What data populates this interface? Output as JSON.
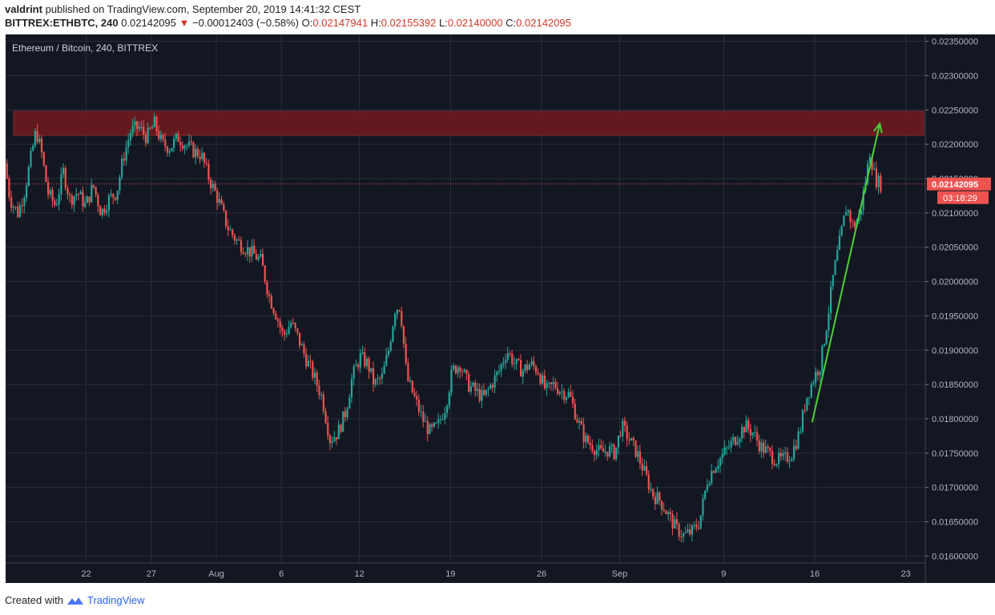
{
  "header": {
    "author": "valdrint",
    "published_text": "published on TradingView.com, September 20, 2019 14:41:32 CEST",
    "symbol": "BITTREX:ETHBTC, 240",
    "last": "0.02142095",
    "change_arrow": "▼",
    "change": "−0.00012403 (−0.58%)",
    "open_label": "O:",
    "open": "0.02147941",
    "high_label": "H:",
    "high": "0.02155392",
    "low_label": "L:",
    "low": "0.02140000",
    "close_label": "C:",
    "close": "0.02142095"
  },
  "footer": {
    "created_with": "Created with",
    "brand": "TradingView",
    "brand_icon": "tradingview-logo-icon"
  },
  "colors": {
    "bg": "#131722",
    "grid": "#2a2e39",
    "up": "#26a69a",
    "down": "#ef5350",
    "zone": "#6b1a1f",
    "arrow": "#4cd137",
    "price_tag": "#ef5350"
  },
  "chart_data": {
    "type": "candlestick",
    "title": "Ethereum / Bitcoin, 240, BITTREX",
    "interval": "240",
    "ylim": [
      0.0159,
      0.0236
    ],
    "y_ticks": [
      "0.02350000",
      "0.02300000",
      "0.02250000",
      "0.02200000",
      "0.02150000",
      "0.02100000",
      "0.02050000",
      "0.02000000",
      "0.01950000",
      "0.01900000",
      "0.01850000",
      "0.01800000",
      "0.01750000",
      "0.01700000",
      "0.01650000",
      "0.01600000"
    ],
    "x_ticks": [
      {
        "label": "22",
        "day": 22
      },
      {
        "label": "27",
        "day": 27
      },
      {
        "label": "Aug",
        "day": 32
      },
      {
        "label": "6",
        "day": 37
      },
      {
        "label": "12",
        "day": 43
      },
      {
        "label": "19",
        "day": 50
      },
      {
        "label": "26",
        "day": 57
      },
      {
        "label": "Sep",
        "day": 63
      },
      {
        "label": "9",
        "day": 71
      },
      {
        "label": "16",
        "day": 78
      },
      {
        "label": "23",
        "day": 85
      }
    ],
    "x_day_range": [
      15.8,
      86.5
    ],
    "price_path": [
      [
        15.8,
        0.02185
      ],
      [
        16.3,
        0.0212
      ],
      [
        16.9,
        0.021
      ],
      [
        17.4,
        0.0213
      ],
      [
        17.9,
        0.0218
      ],
      [
        18.3,
        0.0222
      ],
      [
        18.7,
        0.0219
      ],
      [
        19.2,
        0.0213
      ],
      [
        19.8,
        0.0211
      ],
      [
        20.4,
        0.0216
      ],
      [
        20.9,
        0.0212
      ],
      [
        21.5,
        0.0213
      ],
      [
        22.1,
        0.0211
      ],
      [
        22.7,
        0.0214
      ],
      [
        23.3,
        0.021
      ],
      [
        23.9,
        0.0212
      ],
      [
        24.5,
        0.0213
      ],
      [
        25.0,
        0.0218
      ],
      [
        25.6,
        0.0222
      ],
      [
        26.2,
        0.02225
      ],
      [
        26.8,
        0.0221
      ],
      [
        27.4,
        0.0223
      ],
      [
        28.0,
        0.022
      ],
      [
        28.6,
        0.02195
      ],
      [
        29.2,
        0.0221
      ],
      [
        29.8,
        0.022
      ],
      [
        30.4,
        0.0219
      ],
      [
        31.0,
        0.02185
      ],
      [
        31.6,
        0.0215
      ],
      [
        32.3,
        0.0212
      ],
      [
        33.0,
        0.0208
      ],
      [
        33.7,
        0.0206
      ],
      [
        34.3,
        0.0205
      ],
      [
        35.0,
        0.0204
      ],
      [
        35.6,
        0.0203
      ],
      [
        36.2,
        0.0198
      ],
      [
        36.8,
        0.0195
      ],
      [
        37.3,
        0.0192
      ],
      [
        37.9,
        0.0194
      ],
      [
        38.4,
        0.0192
      ],
      [
        39.0,
        0.0189
      ],
      [
        39.7,
        0.0186
      ],
      [
        40.3,
        0.0183
      ],
      [
        40.9,
        0.0177
      ],
      [
        41.5,
        0.0178
      ],
      [
        42.1,
        0.0181
      ],
      [
        42.6,
        0.0186
      ],
      [
        43.2,
        0.0189
      ],
      [
        43.8,
        0.0188
      ],
      [
        44.3,
        0.0185
      ],
      [
        44.9,
        0.0186
      ],
      [
        45.4,
        0.019
      ],
      [
        45.9,
        0.0196
      ],
      [
        46.3,
        0.01965
      ],
      [
        46.8,
        0.0186
      ],
      [
        47.4,
        0.0183
      ],
      [
        48.0,
        0.018
      ],
      [
        48.6,
        0.0178
      ],
      [
        49.2,
        0.0179
      ],
      [
        49.8,
        0.0182
      ],
      [
        50.3,
        0.0187
      ],
      [
        50.9,
        0.0188
      ],
      [
        51.5,
        0.0185
      ],
      [
        52.1,
        0.0184
      ],
      [
        52.7,
        0.0183
      ],
      [
        53.3,
        0.0185
      ],
      [
        53.9,
        0.0187
      ],
      [
        54.5,
        0.019
      ],
      [
        55.1,
        0.0188
      ],
      [
        55.7,
        0.0187
      ],
      [
        56.3,
        0.0188
      ],
      [
        56.9,
        0.0187
      ],
      [
        57.5,
        0.0184
      ],
      [
        58.1,
        0.0185
      ],
      [
        58.7,
        0.0184
      ],
      [
        59.3,
        0.01835
      ],
      [
        59.9,
        0.018
      ],
      [
        60.5,
        0.0177
      ],
      [
        61.1,
        0.0176
      ],
      [
        61.7,
        0.0175
      ],
      [
        62.3,
        0.01755
      ],
      [
        62.8,
        0.0175
      ],
      [
        63.3,
        0.0179
      ],
      [
        63.9,
        0.0177
      ],
      [
        64.5,
        0.0175
      ],
      [
        65.1,
        0.0172
      ],
      [
        65.7,
        0.0169
      ],
      [
        66.3,
        0.0168
      ],
      [
        66.9,
        0.0166
      ],
      [
        67.5,
        0.0164
      ],
      [
        68.1,
        0.0163
      ],
      [
        68.7,
        0.01635
      ],
      [
        69.3,
        0.0165
      ],
      [
        69.9,
        0.0171
      ],
      [
        70.4,
        0.0173
      ],
      [
        71.0,
        0.01745
      ],
      [
        71.6,
        0.0176
      ],
      [
        72.2,
        0.01775
      ],
      [
        72.8,
        0.0179
      ],
      [
        73.4,
        0.0178
      ],
      [
        74.0,
        0.0176
      ],
      [
        74.6,
        0.0175
      ],
      [
        75.2,
        0.0174
      ],
      [
        75.8,
        0.0174
      ],
      [
        76.4,
        0.0175
      ],
      [
        77.0,
        0.0178
      ],
      [
        77.5,
        0.0183
      ],
      [
        78.1,
        0.0186
      ],
      [
        78.6,
        0.0188
      ],
      [
        79.1,
        0.0194
      ],
      [
        79.6,
        0.0201
      ],
      [
        80.1,
        0.0206
      ],
      [
        80.6,
        0.0211
      ],
      [
        81.1,
        0.0208
      ],
      [
        81.6,
        0.02095
      ],
      [
        82.1,
        0.0215
      ],
      [
        82.4,
        0.0219
      ],
      [
        82.8,
        0.0215
      ],
      [
        83.2,
        0.02142
      ]
    ],
    "resistance_zone": [
      0.02213,
      0.02248
    ],
    "last_price": 0.02142095,
    "last_price_label": "0.02142095",
    "countdown": "03:18:29",
    "arrow": {
      "from": [
        77.8,
        0.01795
      ],
      "to": [
        83.0,
        0.0223
      ]
    }
  }
}
